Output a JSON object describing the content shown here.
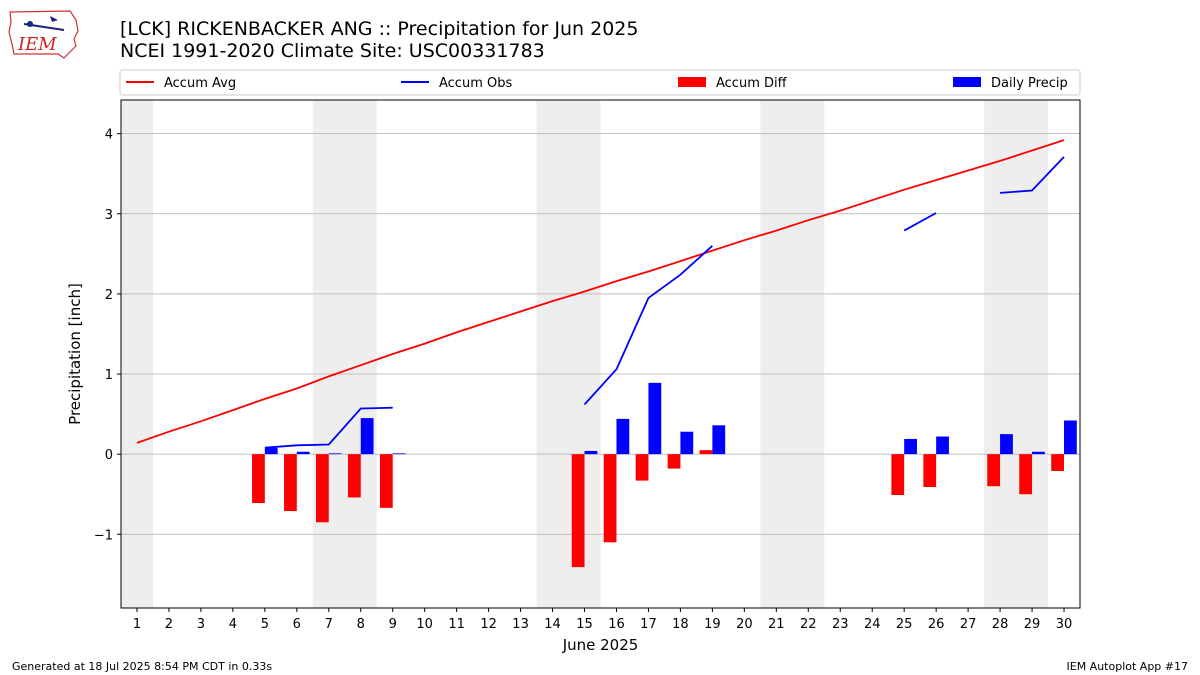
{
  "header": {
    "title": "[LCK] RICKENBACKER ANG :: Precipitation for Jun 2025",
    "subtitle": "NCEI 1991-2020 Climate Site: USC00331783"
  },
  "logo": {
    "text": "IEM",
    "icon": "iowa-state-outline-icon"
  },
  "footer": {
    "left": "Generated at 18 Jul 2025 8:54 PM CDT in 0.33s",
    "right": "IEM Autoplot App #17"
  },
  "chart_data": {
    "type": "bar",
    "xlabel": "June 2025",
    "ylabel": "Precipitation [inch]",
    "xlim": [
      0.5,
      30.5
    ],
    "ylim": [
      -1.92,
      4.42
    ],
    "yticks": [
      -1,
      0,
      1,
      2,
      3,
      4
    ],
    "ytick_labels": [
      "−1",
      "0",
      "1",
      "2",
      "3",
      "4"
    ],
    "x": [
      1,
      2,
      3,
      4,
      5,
      6,
      7,
      8,
      9,
      10,
      11,
      12,
      13,
      14,
      15,
      16,
      17,
      18,
      19,
      20,
      21,
      22,
      23,
      24,
      25,
      26,
      27,
      28,
      29,
      30
    ],
    "grid": "horizontal",
    "legend": {
      "placement": "top",
      "columns": 4
    },
    "weekend_shading": [
      [
        0.5,
        1.5
      ],
      [
        6.5,
        8.5
      ],
      [
        13.5,
        15.5
      ],
      [
        20.5,
        22.5
      ],
      [
        27.5,
        29.5
      ]
    ],
    "colors": {
      "avg": "#ff0000",
      "obs": "#0000ff",
      "diff": "#ff0000",
      "daily": "#0000ff",
      "shade": "#eeeeee",
      "grid": "#b0b0b0"
    },
    "series": [
      {
        "name": "Accum Avg",
        "kind": "line",
        "color": "#ff0000",
        "values": [
          0.14,
          0.28,
          0.41,
          0.55,
          0.69,
          0.82,
          0.97,
          1.11,
          1.25,
          1.38,
          1.52,
          1.65,
          1.78,
          1.91,
          2.03,
          2.16,
          2.28,
          2.41,
          2.54,
          2.67,
          2.79,
          2.92,
          3.04,
          3.17,
          3.3,
          3.42,
          3.54,
          3.66,
          3.79,
          3.92
        ]
      },
      {
        "name": "Accum Obs",
        "kind": "line",
        "color": "#0000ff",
        "values": [
          null,
          null,
          null,
          null,
          0.08,
          0.11,
          0.12,
          0.57,
          0.58,
          null,
          null,
          null,
          null,
          null,
          0.62,
          1.06,
          1.95,
          2.24,
          2.6,
          null,
          null,
          null,
          null,
          null,
          2.79,
          3.01,
          null,
          3.26,
          3.29,
          3.71
        ]
      },
      {
        "name": "Accum Diff",
        "kind": "bar",
        "color": "#ff0000",
        "offset": -0.2,
        "values": [
          null,
          null,
          null,
          null,
          -0.61,
          -0.71,
          -0.85,
          -0.54,
          -0.67,
          null,
          null,
          null,
          null,
          null,
          -1.41,
          -1.1,
          -0.33,
          -0.18,
          0.05,
          null,
          null,
          null,
          null,
          null,
          -0.51,
          -0.41,
          null,
          -0.4,
          -0.5,
          -0.21
        ]
      },
      {
        "name": "Daily Precip",
        "kind": "bar",
        "color": "#0000ff",
        "offset": 0.2,
        "values": [
          null,
          null,
          null,
          null,
          0.08,
          0.03,
          0.01,
          0.45,
          0.01,
          null,
          null,
          null,
          null,
          null,
          0.04,
          0.44,
          0.89,
          0.28,
          0.36,
          null,
          null,
          null,
          null,
          null,
          0.19,
          0.22,
          null,
          0.25,
          0.03,
          0.42
        ]
      }
    ]
  }
}
